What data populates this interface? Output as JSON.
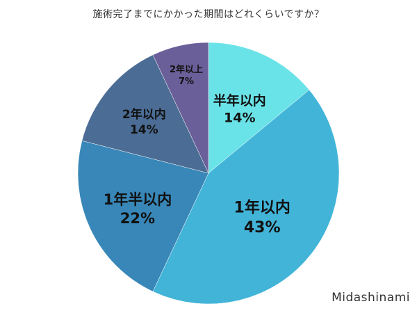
{
  "chart_data": {
    "type": "pie",
    "title": "施術完了までにかかった期間はどれくらいですか？",
    "slices": [
      {
        "label": "半年以内",
        "value": 14,
        "value_label": "14%",
        "color": "#6ae3e8"
      },
      {
        "label": "1年以内",
        "value": 43,
        "value_label": "43%",
        "color": "#42b4d8"
      },
      {
        "label": "1年半以内",
        "value": 22,
        "value_label": "22%",
        "color": "#3887b8"
      },
      {
        "label": "2年以内",
        "value": 14,
        "value_label": "14%",
        "color": "#4b6c94"
      },
      {
        "label": "2年以上",
        "value": 7,
        "value_label": "7%",
        "color": "#6a5f98"
      }
    ],
    "start": "12 o'clock",
    "direction": "clockwise"
  },
  "watermark": "Midashinami"
}
